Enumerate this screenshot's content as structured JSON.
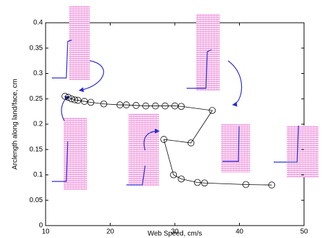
{
  "chart_data": {
    "type": "line",
    "xlabel": "Web Speed, cm/s",
    "ylabel": "Arclength along land/face, cm",
    "x": [
      13,
      13.5,
      14,
      14.5,
      15,
      16,
      17,
      19,
      21.5,
      22.5,
      24,
      25.5,
      27,
      28.5,
      30,
      31,
      35.8,
      32.5,
      28.3,
      29.8,
      31,
      33.5,
      34.6,
      41,
      45
    ],
    "values": [
      0.255,
      0.253,
      0.25,
      0.248,
      0.247,
      0.245,
      0.243,
      0.24,
      0.238,
      0.238,
      0.237,
      0.236,
      0.236,
      0.236,
      0.236,
      0.235,
      0.227,
      0.163,
      0.17,
      0.1,
      0.092,
      0.085,
      0.084,
      0.081,
      0.08
    ],
    "color": "#000000",
    "xlim": [
      10,
      50
    ],
    "xticks": [
      10,
      20,
      30,
      40,
      50
    ],
    "ylim": [
      0,
      0.4
    ],
    "yticks": [
      0,
      0.05,
      0.1,
      0.15,
      0.2,
      0.25,
      0.3,
      0.35,
      0.4
    ]
  }
}
